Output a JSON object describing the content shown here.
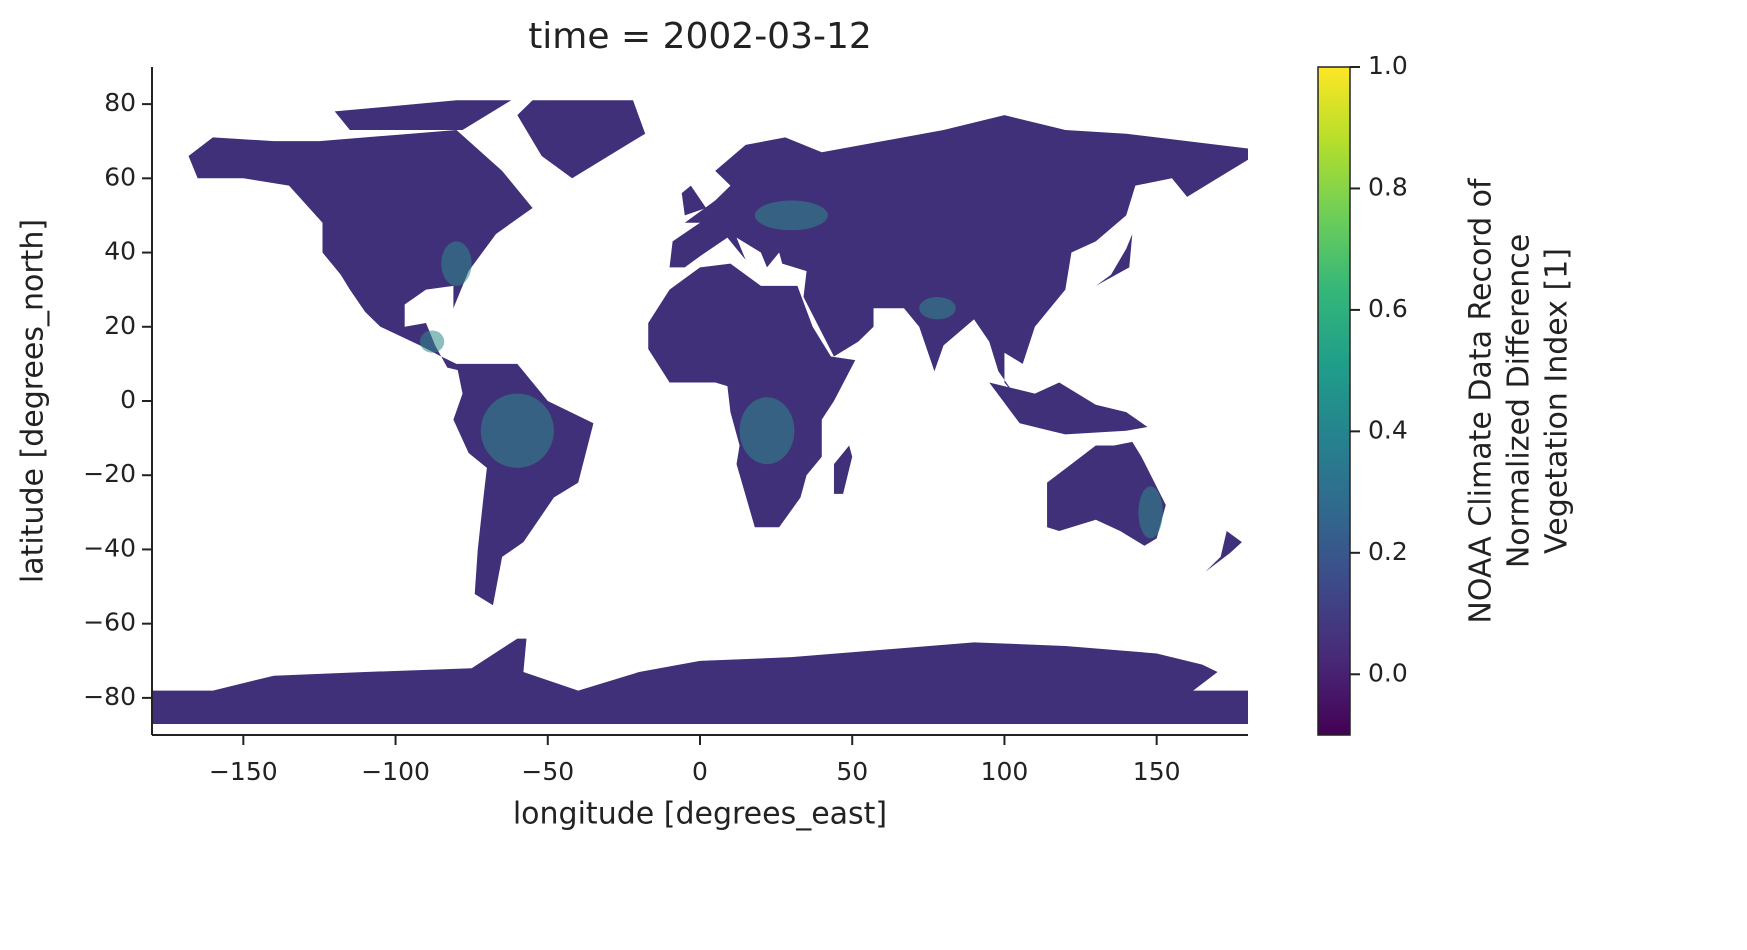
{
  "chart_data": {
    "type": "map",
    "title": "time = 2002-03-12",
    "xlabel": "longitude [degrees_east]",
    "ylabel": "latitude [degrees_north]",
    "xlim": [
      -180,
      180
    ],
    "ylim": [
      -90,
      90
    ],
    "xticks": [
      {
        "value": -150,
        "label": "−150"
      },
      {
        "value": -100,
        "label": "−100"
      },
      {
        "value": -50,
        "label": "−50"
      },
      0,
      50,
      100,
      150
    ],
    "yticks": [
      {
        "value": -80,
        "label": "−80"
      },
      {
        "value": -60,
        "label": "−60"
      },
      {
        "value": -40,
        "label": "−40"
      },
      {
        "value": -20,
        "label": "−20"
      },
      0,
      20,
      40,
      60,
      80
    ],
    "colorbar": {
      "cmap": "viridis",
      "label": [
        "NOAA Climate Data Record of",
        "Normalized Difference",
        "Vegetation Index [1]"
      ],
      "clim": [
        -0.1,
        1.0
      ],
      "ticks": [
        {
          "value": 0,
          "label": "0.0"
        },
        0.2,
        0.4,
        0.6,
        0.8,
        {
          "value": 1,
          "label": "1.0"
        }
      ]
    }
  }
}
